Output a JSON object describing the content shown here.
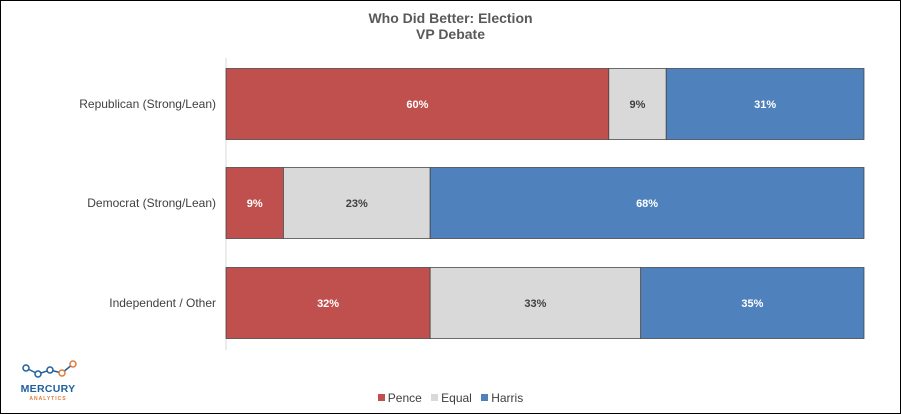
{
  "chart_data": {
    "type": "bar",
    "orientation": "horizontal",
    "stacked": true,
    "title": "Who Did Better: Election\nVP Debate",
    "title_lines": [
      "Who Did Better: Election",
      "VP Debate"
    ],
    "categories": [
      "Republican (Strong/Lean)",
      "Democrat (Strong/Lean)",
      "Independent / Other"
    ],
    "series": [
      {
        "name": "Pence",
        "color": "#c0504d",
        "values": [
          60,
          9,
          32
        ],
        "labels": [
          "60%",
          "9%",
          "32%"
        ]
      },
      {
        "name": "Equal",
        "color": "#d9d9d9",
        "values": [
          9,
          23,
          33
        ],
        "labels": [
          "9%",
          "23%",
          "33%"
        ]
      },
      {
        "name": "Harris",
        "color": "#4f81bd",
        "values": [
          31,
          68,
          35
        ],
        "labels": [
          "31%",
          "68%",
          "35%"
        ]
      }
    ],
    "xlim": [
      0,
      100
    ],
    "grid": false,
    "legend_position": "bottom",
    "xlabel": "",
    "ylabel": ""
  },
  "logo": {
    "name": "MERCURY",
    "sub": "ANALYTICS",
    "colors": [
      "#1f5f9e",
      "#e07b39"
    ]
  }
}
